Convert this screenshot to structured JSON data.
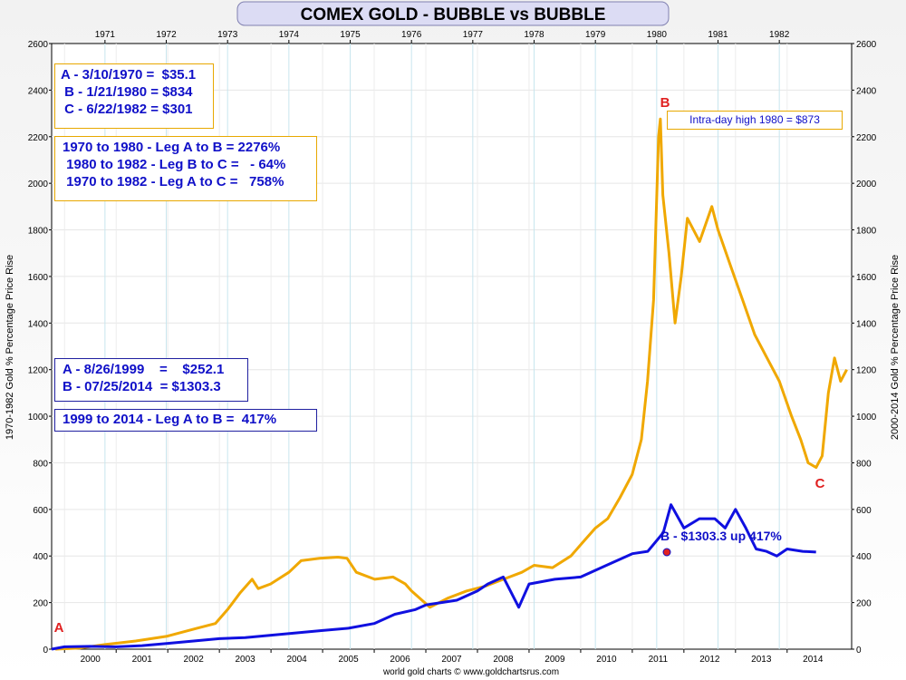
{
  "chart_data": {
    "type": "line",
    "title": "COMEX GOLD - BUBBLE vs BUBBLE",
    "ylabel_left": "1970-1982 Gold % Percentage Price Rise",
    "ylabel_right": "2000-2014 Gold % Percentage Price Rise",
    "footer": "world gold charts © www.goldchartsrus.com",
    "ylim": [
      0,
      2600
    ],
    "y_ticks": [
      "0",
      "200",
      "400",
      "600",
      "800",
      "1000",
      "1200",
      "1400",
      "1600",
      "1800",
      "2000",
      "2200",
      "2400",
      "2600"
    ],
    "x_ticks_top": [
      "1971",
      "1972",
      "1973",
      "1974",
      "1975",
      "1976",
      "1977",
      "1978",
      "1979",
      "1980",
      "1981",
      "1982"
    ],
    "x_ticks_bottom": [
      "2000",
      "2001",
      "2002",
      "2003",
      "2004",
      "2005",
      "2006",
      "2007",
      "2008",
      "2009",
      "2010",
      "2011",
      "2012",
      "2013",
      "2014"
    ],
    "grid": true,
    "series": [
      {
        "name": "1970-1982",
        "color": "#f0a800",
        "x_axis": "top",
        "x": [
          1970.19,
          1970.6,
          1971.0,
          1971.5,
          1972.0,
          1972.5,
          1972.8,
          1973.0,
          1973.2,
          1973.4,
          1973.5,
          1973.7,
          1974.0,
          1974.2,
          1974.5,
          1974.8,
          1974.95,
          1975.1,
          1975.4,
          1975.7,
          1975.9,
          1976.0,
          1976.3,
          1976.6,
          1976.9,
          1977.2,
          1977.5,
          1977.8,
          1978.0,
          1978.3,
          1978.6,
          1978.8,
          1979.0,
          1979.2,
          1979.4,
          1979.6,
          1979.75,
          1979.85,
          1979.95,
          1980.03,
          1980.06,
          1980.1,
          1980.2,
          1980.3,
          1980.4,
          1980.5,
          1980.7,
          1980.9,
          1981.0,
          1981.2,
          1981.4,
          1981.6,
          1981.8,
          1982.0,
          1982.2,
          1982.35,
          1982.47,
          1982.6,
          1982.7,
          1982.8,
          1982.9,
          1983.0,
          1983.1
        ],
        "values": [
          0,
          5,
          20,
          35,
          55,
          90,
          110,
          170,
          240,
          300,
          260,
          280,
          330,
          380,
          390,
          395,
          390,
          330,
          300,
          310,
          280,
          250,
          180,
          220,
          250,
          270,
          300,
          330,
          360,
          350,
          400,
          460,
          520,
          560,
          650,
          750,
          900,
          1150,
          1500,
          2200,
          2276,
          1950,
          1700,
          1400,
          1600,
          1850,
          1750,
          1900,
          1800,
          1650,
          1500,
          1350,
          1250,
          1150,
          1000,
          900,
          800,
          780,
          830,
          1100,
          1250,
          1150,
          1200
        ],
        "point_labels": {
          "start": "A",
          "peak": "B",
          "low": "C"
        }
      },
      {
        "name": "2000-2014",
        "color": "#1010e0",
        "x_axis": "bottom",
        "x": [
          1999.65,
          2000.0,
          2000.5,
          2001.0,
          2001.5,
          2002.0,
          2002.5,
          2003.0,
          2003.5,
          2004.0,
          2004.5,
          2005.0,
          2005.5,
          2006.0,
          2006.4,
          2006.8,
          2007.0,
          2007.3,
          2007.6,
          2008.0,
          2008.2,
          2008.5,
          2008.8,
          2009.0,
          2009.5,
          2010.0,
          2010.5,
          2011.0,
          2011.3,
          2011.6,
          2011.75,
          2011.9,
          2012.0,
          2012.3,
          2012.6,
          2012.8,
          2013.0,
          2013.2,
          2013.4,
          2013.6,
          2013.8,
          2014.0,
          2014.3,
          2014.56
        ],
        "values": [
          0,
          10,
          12,
          10,
          15,
          25,
          35,
          45,
          50,
          60,
          70,
          80,
          90,
          110,
          150,
          170,
          190,
          200,
          210,
          250,
          280,
          310,
          180,
          280,
          300,
          310,
          360,
          410,
          420,
          500,
          620,
          560,
          520,
          560,
          560,
          520,
          600,
          520,
          430,
          420,
          400,
          430,
          420,
          417
        ]
      }
    ],
    "annotations": {
      "gold_prices": [
        "A - 3/10/1970 =  $35.1",
        " B - 1/21/1980 = $834",
        " C - 6/22/1982 = $301"
      ],
      "gold_legs": [
        "1970 to 1980 - Leg A to B = 2276%",
        " 1980 to 1982 - Leg B to C =   - 64%",
        " 1970 to 1982 - Leg A to C =   758%"
      ],
      "blue_prices": [
        "A - 8/26/1999    =    $252.1",
        "B - 07/25/2014  = $1303.3"
      ],
      "blue_leg": "1999 to 2014 - Leg A to B =  417%",
      "intraday": "Intra-day high 1980 = $873",
      "label_A": "A",
      "label_B": "B",
      "label_C": "C",
      "current_label": "B - $1303.3 up 417%"
    }
  }
}
